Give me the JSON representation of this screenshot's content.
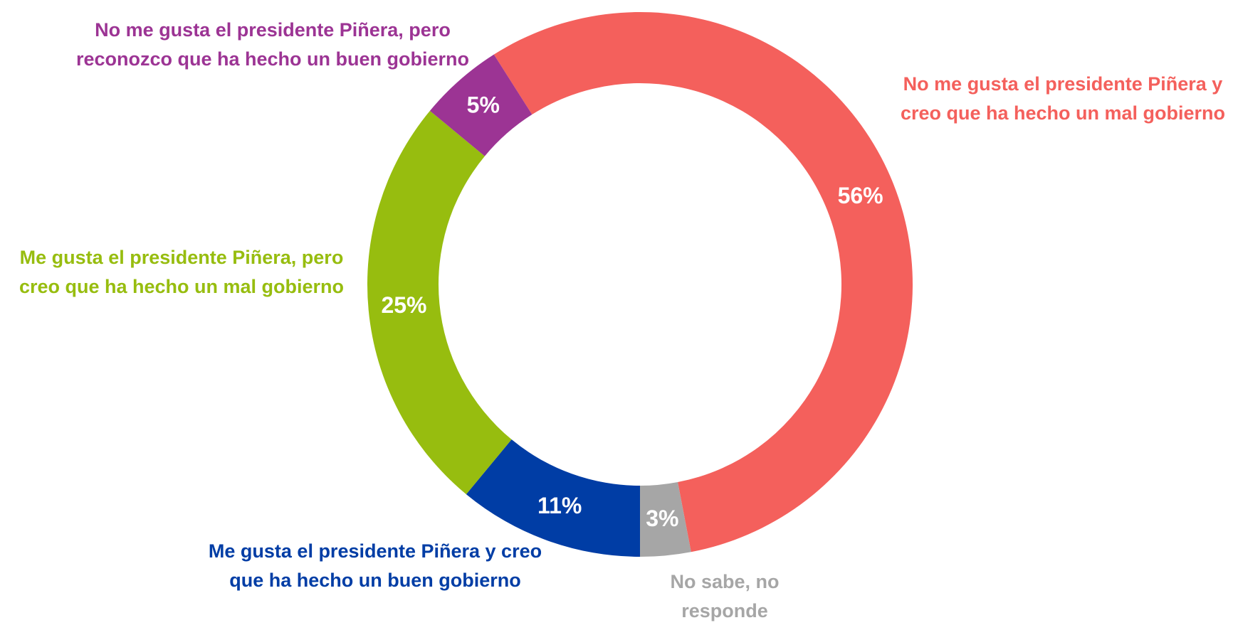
{
  "chart_data": {
    "type": "donut",
    "categories": [
      "No me gusta el presidente Piñera y creo que ha hecho un mal gobierno",
      "No sabe, no responde",
      "Me gusta el presidente Piñera y creo que ha hecho un buen gobierno",
      "Me gusta el presidente Piñera, pero creo que ha hecho un mal gobierno",
      "No me gusta el presidente Piñera, pero reconozco que ha hecho un buen gobierno"
    ],
    "values": [
      56,
      3,
      11,
      25,
      5
    ],
    "value_labels": [
      "56%",
      "3%",
      "11%",
      "25%",
      "5%"
    ],
    "colors": [
      "#f4605c",
      "#a6a6a6",
      "#003da5",
      "#97bd0f",
      "#9c3494"
    ]
  }
}
